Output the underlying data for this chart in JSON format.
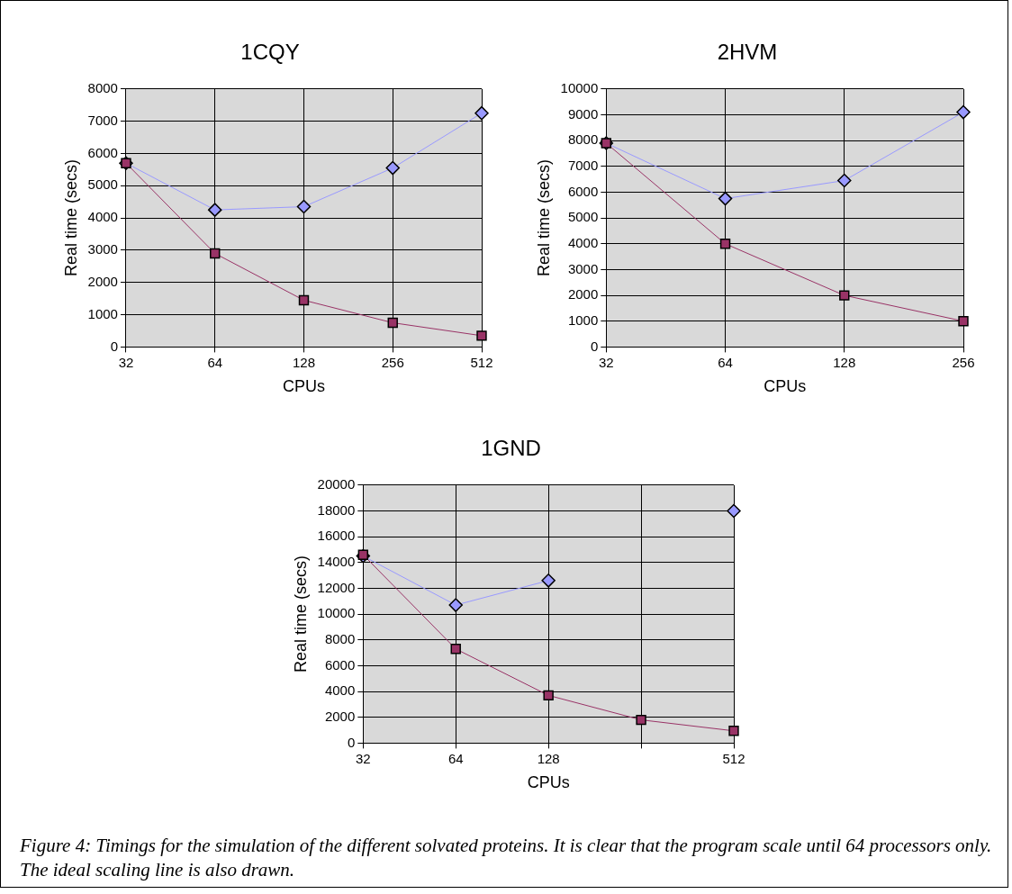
{
  "chart_data": [
    {
      "type": "line",
      "title": "1CQY",
      "xlabel": "CPUs",
      "ylabel": "Real time (secs)",
      "categories": [
        "32",
        "64",
        "128",
        "256",
        "512"
      ],
      "ylim": [
        0,
        8000
      ],
      "yticks": [
        0,
        1000,
        2000,
        3000,
        4000,
        5000,
        6000,
        7000,
        8000
      ],
      "grid": true,
      "series": [
        {
          "color": "#9999ff",
          "marker": "diamond",
          "values": [
            5700,
            4250,
            4350,
            5550,
            7250
          ]
        },
        {
          "color": "#993366",
          "marker": "square",
          "values": [
            5700,
            2900,
            1450,
            750,
            350
          ]
        }
      ]
    },
    {
      "type": "line",
      "title": "2HVM",
      "xlabel": "CPUs",
      "ylabel": "Real time (secs)",
      "categories": [
        "32",
        "64",
        "128",
        "256"
      ],
      "ylim": [
        0,
        10000
      ],
      "yticks": [
        0,
        1000,
        2000,
        3000,
        4000,
        5000,
        6000,
        7000,
        8000,
        9000,
        10000
      ],
      "grid": true,
      "series": [
        {
          "color": "#9999ff",
          "marker": "diamond",
          "values": [
            7900,
            5750,
            6450,
            9100
          ]
        },
        {
          "color": "#993366",
          "marker": "square",
          "values": [
            7900,
            4000,
            2000,
            1000
          ]
        }
      ]
    },
    {
      "type": "line",
      "title": "1GND",
      "xlabel": "CPUs",
      "ylabel": "Real time (secs)",
      "categories": [
        "32",
        "64",
        "128",
        null,
        "512"
      ],
      "ylim": [
        0,
        20000
      ],
      "yticks": [
        0,
        2000,
        4000,
        6000,
        8000,
        10000,
        12000,
        14000,
        16000,
        18000,
        20000
      ],
      "grid": true,
      "series": [
        {
          "color": "#9999ff",
          "marker": "diamond",
          "values": [
            14500,
            10700,
            12600,
            null,
            18000
          ]
        },
        {
          "color": "#993366",
          "marker": "square",
          "values": [
            14600,
            7300,
            3700,
            1800,
            950
          ]
        }
      ],
      "annotations": [
        "Figure 4: Timings for the simulation of the different solvated proteins. It is clear that the program scale until 64 processors only. The ideal scaling line is also drawn."
      ]
    }
  ]
}
